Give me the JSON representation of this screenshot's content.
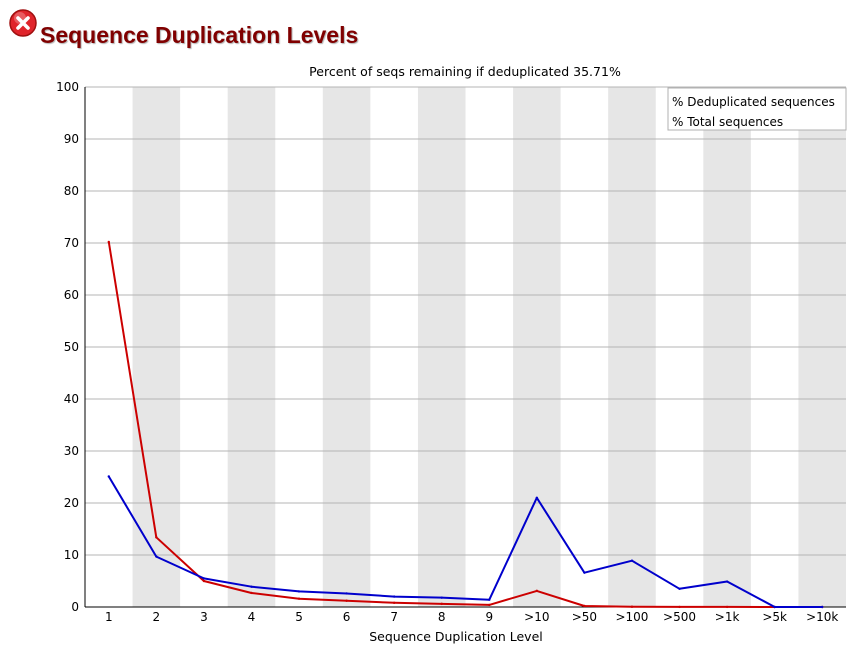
{
  "page": {
    "title": "Sequence Duplication Levels",
    "status_icon": "fail-icon",
    "colors": {
      "title": "#800000",
      "fail": "#e0242b"
    }
  },
  "chart_data": {
    "type": "line",
    "title": "Percent of seqs remaining if deduplicated 35.71%",
    "xlabel": "Sequence Duplication Level",
    "ylabel": "",
    "categories": [
      "1",
      "2",
      "3",
      "4",
      "5",
      "6",
      "7",
      "8",
      "9",
      ">10",
      ">50",
      ">100",
      ">500",
      ">1k",
      ">5k",
      ">10k"
    ],
    "ylim": [
      0,
      100
    ],
    "yticks": [
      0,
      10,
      20,
      30,
      40,
      50,
      60,
      70,
      80,
      90,
      100
    ],
    "grid": true,
    "alternating_column_shading": true,
    "legend_position": "top-right",
    "series": [
      {
        "name": "% Deduplicated sequences",
        "color": "#cc0000",
        "values": [
          70.2,
          13.4,
          5.0,
          2.7,
          1.6,
          1.2,
          0.8,
          0.6,
          0.4,
          3.1,
          0.2,
          0.05,
          0.02,
          0.02,
          0.0,
          0.0
        ]
      },
      {
        "name": "% Total sequences",
        "color": "#0000cc",
        "values": [
          25.1,
          9.7,
          5.5,
          3.9,
          3.0,
          2.6,
          2.0,
          1.8,
          1.4,
          21.0,
          6.6,
          8.9,
          3.5,
          4.9,
          0.0,
          0.0
        ]
      }
    ]
  }
}
